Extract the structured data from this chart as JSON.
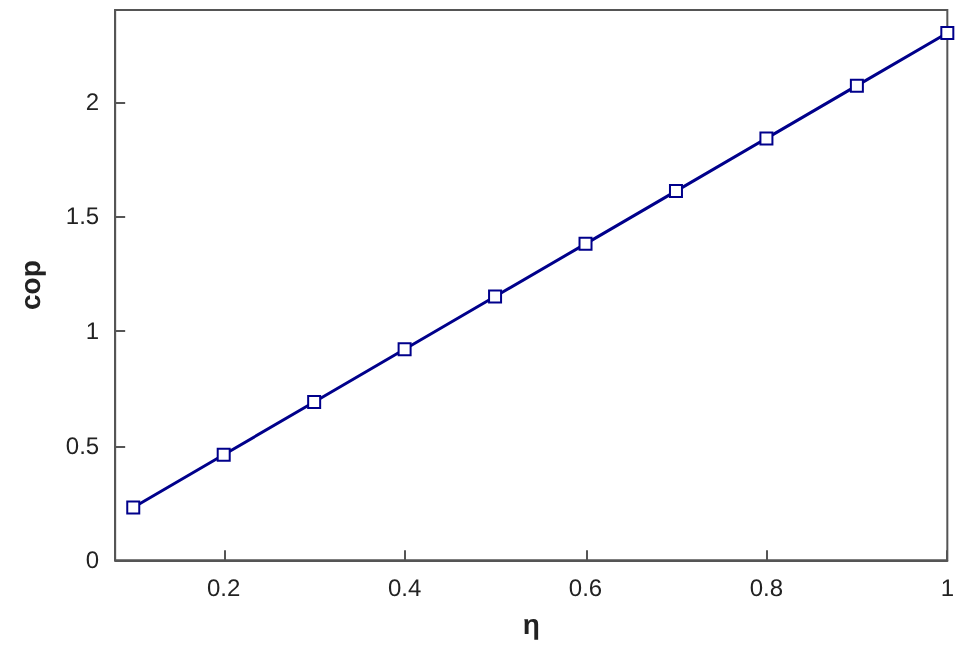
{
  "chart_data": {
    "type": "line",
    "xlabel": "η",
    "ylabel": "cop",
    "x": [
      0.1,
      0.2,
      0.3,
      0.4,
      0.5,
      0.6,
      0.7,
      0.8,
      0.9,
      1.0
    ],
    "series": [
      {
        "color": "#00008b",
        "values": [
          0.23,
          0.46,
          0.69,
          0.92,
          1.15,
          1.38,
          1.61,
          1.84,
          2.07,
          2.3
        ]
      }
    ],
    "xlim": [
      0.08,
      1
    ],
    "xticks": [
      0.2,
      0.4,
      0.6,
      0.8,
      1
    ],
    "ylim": [
      0,
      2.4
    ],
    "yticks": [
      0,
      0.5,
      1,
      1.5,
      2
    ],
    "marker": "square",
    "line_style": "solid",
    "grid": false
  }
}
